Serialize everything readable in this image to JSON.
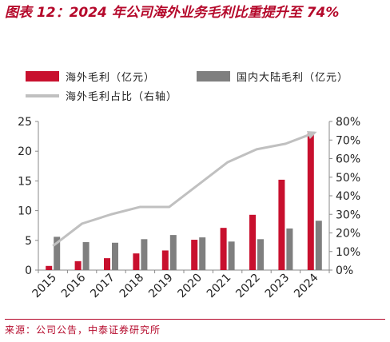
{
  "title": "图表 12：2024 年公司海外业务毛利比重提升至 74%",
  "source": "来源：公司公告，中泰证券研究所",
  "colors": {
    "overseas": "#c8102e",
    "domestic": "#7f7f7f",
    "share": "#c0c0c0",
    "title": "#b5092b"
  },
  "chart_data": {
    "type": "bar",
    "categories": [
      "2015",
      "2016",
      "2017",
      "2018",
      "2019",
      "2020",
      "2021",
      "2022",
      "2023",
      "2024"
    ],
    "series": [
      {
        "name": "海外毛利（亿元）",
        "type": "bar",
        "axis": "left",
        "values": [
          0.7,
          1.5,
          2.0,
          2.8,
          3.3,
          5.1,
          7.1,
          9.3,
          15.2,
          23.1
        ]
      },
      {
        "name": "国内大陆毛利（亿元）",
        "type": "bar",
        "axis": "left",
        "values": [
          5.6,
          4.7,
          4.6,
          5.2,
          5.9,
          5.5,
          4.8,
          5.2,
          7.0,
          8.3
        ]
      },
      {
        "name": "海外毛利占比（右轴）",
        "type": "line",
        "axis": "right",
        "values": [
          13,
          25,
          30,
          34,
          34,
          46,
          58,
          65,
          68,
          74
        ]
      }
    ],
    "ylim_left": [
      0,
      25
    ],
    "yticks_left": [
      "0",
      "5",
      "10",
      "15",
      "20",
      "25"
    ],
    "ylim_right": [
      0,
      80
    ],
    "yticks_right": [
      "0%",
      "10%",
      "20%",
      "30%",
      "40%",
      "50%",
      "60%",
      "70%",
      "80%"
    ],
    "grid": false,
    "legend_position": "top"
  }
}
